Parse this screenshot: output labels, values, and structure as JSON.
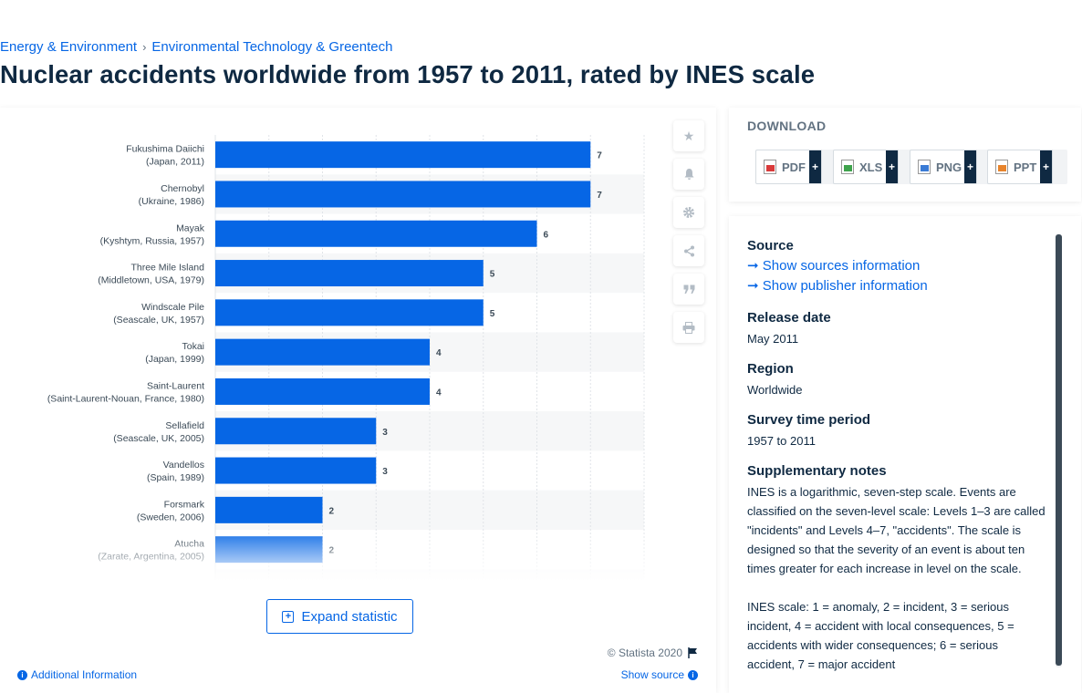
{
  "breadcrumb": {
    "item1": "Energy & Environment",
    "separator": "›",
    "item2": "Environmental Technology & Greentech"
  },
  "page_title": "Nuclear accidents worldwide from 1957 to 2011, rated by INES scale",
  "expand_label": "Expand statistic",
  "copyright": "© Statista 2020",
  "additional_info": "Additional Information",
  "show_source": "Show source",
  "download": {
    "title": "DOWNLOAD",
    "buttons": [
      {
        "label": "PDF",
        "color": "#d93a3a"
      },
      {
        "label": "XLS",
        "color": "#3fa34d"
      },
      {
        "label": "PNG",
        "color": "#3a7bd5"
      },
      {
        "label": "PPT",
        "color": "#e8842c"
      }
    ],
    "plus": "+"
  },
  "tools": [
    "star-icon",
    "bell-icon",
    "gear-icon",
    "share-icon",
    "quote-icon",
    "print-icon"
  ],
  "info": {
    "source_heading": "Source",
    "source_link1": "Show sources information",
    "source_link2": "Show publisher information",
    "release_heading": "Release date",
    "release_value": "May 2011",
    "region_heading": "Region",
    "region_value": "Worldwide",
    "survey_heading": "Survey time period",
    "survey_value": "1957 to 2011",
    "notes_heading": "Supplementary notes",
    "notes_p1": "INES is a logarithmic, seven-step scale. Events are classified on the seven-level scale: Levels 1–3 are called \"incidents\" and Levels 4–7, \"accidents\". The scale is designed so that the severity of an event is about ten times greater for each increase in level on the scale.",
    "notes_p2": "INES scale: 1 = anomaly, 2 = incident, 3 = serious incident, 4 = accident with local consequences, 5 = accidents with wider consequences; 6 = serious accident, 7 = major accident"
  },
  "colors": {
    "bar": "#0666e5",
    "accent": "#0666e5",
    "text": "#0f2942",
    "muted": "#637382"
  },
  "chart_data": {
    "type": "bar",
    "orientation": "horizontal",
    "categories": [
      [
        "Fukushima Daiichi",
        "(Japan, 2011)"
      ],
      [
        "Chernobyl",
        "(Ukraine, 1986)"
      ],
      [
        "Mayak",
        "(Kyshtym, Russia, 1957)"
      ],
      [
        "Three Mile Island",
        "(Middletown, USA, 1979)"
      ],
      [
        "Windscale Pile",
        "(Seascale, UK, 1957)"
      ],
      [
        "Tokai",
        "(Japan, 1999)"
      ],
      [
        "Saint-Laurent",
        "(Saint-Laurent-Nouan, France, 1980)"
      ],
      [
        "Sellafield",
        "(Seascale, UK, 2005)"
      ],
      [
        "Vandellos",
        "(Spain, 1989)"
      ],
      [
        "Forsmark",
        "(Sweden, 2006)"
      ],
      [
        "Atucha",
        "(Zarate, Argentina, 2005)"
      ]
    ],
    "values": [
      7,
      7,
      6,
      5,
      5,
      4,
      4,
      3,
      3,
      2,
      2
    ],
    "xlim": [
      0,
      8
    ],
    "grid": true,
    "legend": "none"
  }
}
